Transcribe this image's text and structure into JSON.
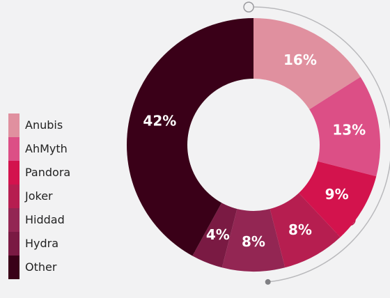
{
  "chart_data": {
    "type": "pie",
    "donut": true,
    "title": "",
    "legend_position": "left",
    "categories": [
      "Anubis",
      "AhMyth",
      "Pandora",
      "Joker",
      "Hiddad",
      "Hydra",
      "Other"
    ],
    "values": [
      16,
      13,
      9,
      8,
      8,
      4,
      42
    ],
    "labels": [
      "16%",
      "13%",
      "9%",
      "8%",
      "8%",
      "4%",
      "42%"
    ],
    "colors": [
      "#e0909f",
      "#dc4f86",
      "#d3134d",
      "#b61e50",
      "#932653",
      "#7a1a43",
      "#3a0018"
    ]
  }
}
